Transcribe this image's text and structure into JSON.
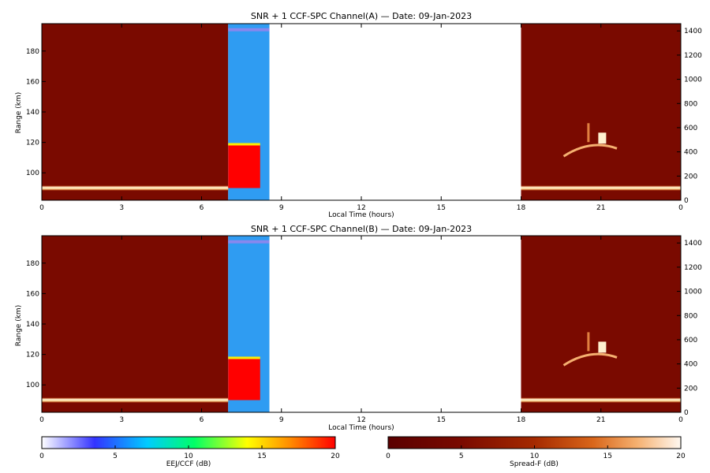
{
  "chart_data": [
    {
      "type": "heatmap",
      "title": "SNR + 1 CCF-SPC Channel(A) — Date: 09-Jan-2023",
      "xlabel": "Local Time (hours)",
      "ylabel": "Range (km)",
      "xticks": [
        "0",
        "3",
        "6",
        "9",
        "12",
        "15",
        "18",
        "21",
        "0"
      ],
      "yticks_left": [
        100,
        120,
        140,
        160,
        180
      ],
      "yticks_right": [
        0,
        200,
        400,
        600,
        800,
        1000,
        1200,
        1400
      ],
      "x_range_hours": [
        0,
        24
      ],
      "y_range_km": [
        82,
        198
      ],
      "y_right_range": [
        0,
        1460
      ],
      "segments": [
        {
          "scale": "Spread-F",
          "x_start": 0,
          "x_end": 7.0
        },
        {
          "scale": "EEJ/CCF",
          "x_start": 7.0,
          "x_end": 8.55
        },
        {
          "scale": "none",
          "x_start": 8.55,
          "x_end": 18.0
        },
        {
          "scale": "Spread-F",
          "x_start": 18.0,
          "x_end": 24
        }
      ],
      "features": [
        {
          "desc": "E-region echo layer",
          "x_start": 0,
          "x_end": 7.0,
          "range_km": 90,
          "snr_db": 20
        },
        {
          "desc": "Saturated EEJ echo",
          "x_start": 7.0,
          "x_end": 8.2,
          "range_from_km": 90,
          "range_to_km": 118,
          "snr_db": 20
        },
        {
          "desc": "Top range marker band",
          "x_start": 7.0,
          "x_end": 8.55,
          "range_km": 194
        },
        {
          "desc": "E-region echo layer",
          "x_start": 18.0,
          "x_end": 24,
          "range_km": 90,
          "snr_db": 20
        },
        {
          "desc": "Spread-F plume",
          "x_start": 19.6,
          "x_end": 21.6,
          "range_km": 115
        }
      ]
    },
    {
      "type": "heatmap",
      "title": "SNR + 1 CCF-SPC Channel(B) — Date: 09-Jan-2023",
      "xlabel": "Local Time (hours)",
      "ylabel": "Range (km)",
      "xticks": [
        "0",
        "3",
        "6",
        "9",
        "12",
        "15",
        "18",
        "21",
        "0"
      ],
      "yticks_left": [
        100,
        120,
        140,
        160,
        180
      ],
      "yticks_right": [
        0,
        200,
        400,
        600,
        800,
        1000,
        1200,
        1400
      ],
      "x_range_hours": [
        0,
        24
      ],
      "y_range_km": [
        82,
        198
      ],
      "y_right_range": [
        0,
        1460
      ],
      "segments": [
        {
          "scale": "Spread-F",
          "x_start": 0,
          "x_end": 7.0
        },
        {
          "scale": "EEJ/CCF",
          "x_start": 7.0,
          "x_end": 8.55
        },
        {
          "scale": "none",
          "x_start": 8.55,
          "x_end": 18.0
        },
        {
          "scale": "Spread-F",
          "x_start": 18.0,
          "x_end": 24
        }
      ],
      "features": [
        {
          "desc": "E-region echo layer",
          "x_start": 0,
          "x_end": 7.0,
          "range_km": 90,
          "snr_db": 20
        },
        {
          "desc": "Saturated EEJ echo",
          "x_start": 7.0,
          "x_end": 8.2,
          "range_from_km": 90,
          "range_to_km": 117,
          "snr_db": 20
        },
        {
          "desc": "Top range marker band",
          "x_start": 7.0,
          "x_end": 8.55,
          "range_km": 194
        },
        {
          "desc": "E-region echo layer",
          "x_start": 18.0,
          "x_end": 24,
          "range_km": 90,
          "snr_db": 20
        },
        {
          "desc": "Spread-F plume",
          "x_start": 19.6,
          "x_end": 21.6,
          "range_km": 117
        }
      ]
    },
    {
      "type": "colorbar",
      "label": "EEJ/CCF (dB)",
      "ticks": [
        0,
        5,
        10,
        15,
        20
      ],
      "range": [
        0,
        20
      ],
      "colors": [
        "#ffffff",
        "#3333ff",
        "#00ccff",
        "#00ff66",
        "#ffff00",
        "#ff8800",
        "#ff0000"
      ]
    },
    {
      "type": "colorbar",
      "label": "Spread-F (dB)",
      "ticks": [
        0,
        5,
        10,
        15,
        20
      ],
      "range": [
        0,
        20
      ],
      "colors": [
        "#5a0000",
        "#7a0a00",
        "#a52a00",
        "#d9661a",
        "#f5b070",
        "#fff8f0"
      ]
    }
  ],
  "colors": {
    "spreadf_background": "#7a0a00",
    "eej_background": "#2f9cf2",
    "eej_saturated": "#ff0000",
    "marker_band": "#8888ee",
    "axis": "#000000",
    "page": "#ffffff"
  }
}
